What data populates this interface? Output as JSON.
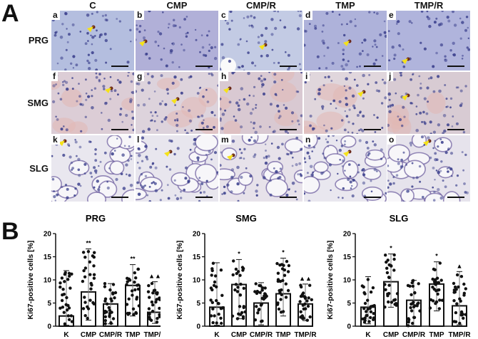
{
  "figure": {
    "panel_a_letter": "A",
    "panel_b_letter": "B",
    "columns": [
      "C",
      "CMP",
      "CMP/R",
      "TMP",
      "TMP/R"
    ],
    "rows": [
      "PRG",
      "SMG",
      "SLG"
    ],
    "micrographs": [
      {
        "label": "a",
        "row": "PRG",
        "col": "C"
      },
      {
        "label": "b",
        "row": "PRG",
        "col": "CMP"
      },
      {
        "label": "c",
        "row": "PRG",
        "col": "CMP/R"
      },
      {
        "label": "d",
        "row": "PRG",
        "col": "TMP"
      },
      {
        "label": "e",
        "row": "PRG",
        "col": "TMP/R"
      },
      {
        "label": "f",
        "row": "SMG",
        "col": "C"
      },
      {
        "label": "g",
        "row": "SMG",
        "col": "CMP"
      },
      {
        "label": "h",
        "row": "SMG",
        "col": "CMP/R"
      },
      {
        "label": "i",
        "row": "SMG",
        "col": "TMP"
      },
      {
        "label": "j",
        "row": "SMG",
        "col": "TMP/R"
      },
      {
        "label": "k",
        "row": "SLG",
        "col": "C"
      },
      {
        "label": "l",
        "row": "SLG",
        "col": "CMP"
      },
      {
        "label": "m",
        "row": "SLG",
        "col": "CMP/R"
      },
      {
        "label": "n",
        "row": "SLG",
        "col": "TMP"
      },
      {
        "label": "o",
        "row": "SLG",
        "col": "TMP/R"
      }
    ],
    "colors": {
      "prg_stain": "#a9b3d8",
      "smg_stain": "#d9c7cf",
      "slg_stain": "#e6e4ec",
      "arrow": "#f5e21a",
      "scale_bar": "#111111"
    }
  },
  "chart_data": [
    {
      "type": "bar",
      "title": "PRG",
      "categories": [
        "K",
        "CMP",
        "CMP/R",
        "TMP",
        "TMP/R"
      ],
      "values": [
        2.2,
        7.4,
        4.8,
        8.8,
        3.0
      ],
      "min": [
        0.2,
        1.3,
        0.5,
        2.2,
        0.6
      ],
      "max": [
        12.0,
        16.7,
        9.2,
        13.3,
        9.6
      ],
      "significance": [
        "",
        "**",
        "",
        "**",
        "▲▲"
      ],
      "xlabel": "",
      "ylabel": "Ki67-positive cells [%]",
      "ylim": [
        0,
        20
      ],
      "yticks": [
        0,
        5,
        10,
        15,
        20
      ]
    },
    {
      "type": "bar",
      "title": "SMG",
      "categories": [
        "K",
        "CMP",
        "CMP/R",
        "TMP",
        "TMP/R"
      ],
      "values": [
        4.1,
        9.0,
        5.0,
        7.0,
        4.8
      ],
      "min": [
        0.2,
        1.6,
        0.3,
        2.2,
        1.2
      ],
      "max": [
        13.7,
        14.4,
        9.4,
        14.7,
        9.1
      ],
      "significance": [
        "",
        "*",
        "",
        "*",
        "▲▲"
      ],
      "xlabel": "",
      "ylabel": "Ki67-positive cells [%]",
      "ylim": [
        0,
        20
      ],
      "yticks": [
        0,
        5,
        10,
        15,
        20
      ]
    },
    {
      "type": "bar",
      "title": "SLG",
      "categories": [
        "K",
        "CMP",
        "CMP/R",
        "TMP",
        "TMP/R"
      ],
      "values": [
        4.1,
        9.6,
        5.6,
        9.1,
        4.4
      ],
      "min": [
        0.5,
        4.1,
        0.1,
        3.3,
        0.3
      ],
      "max": [
        10.7,
        15.6,
        9.9,
        13.9,
        11.8
      ],
      "significance": [
        "",
        "*",
        "",
        "*",
        "▲"
      ],
      "xlabel": "",
      "ylabel": "Ki67-positive cells [%]",
      "ylim": [
        0,
        20
      ],
      "yticks": [
        0,
        5,
        10,
        15,
        20
      ]
    }
  ]
}
